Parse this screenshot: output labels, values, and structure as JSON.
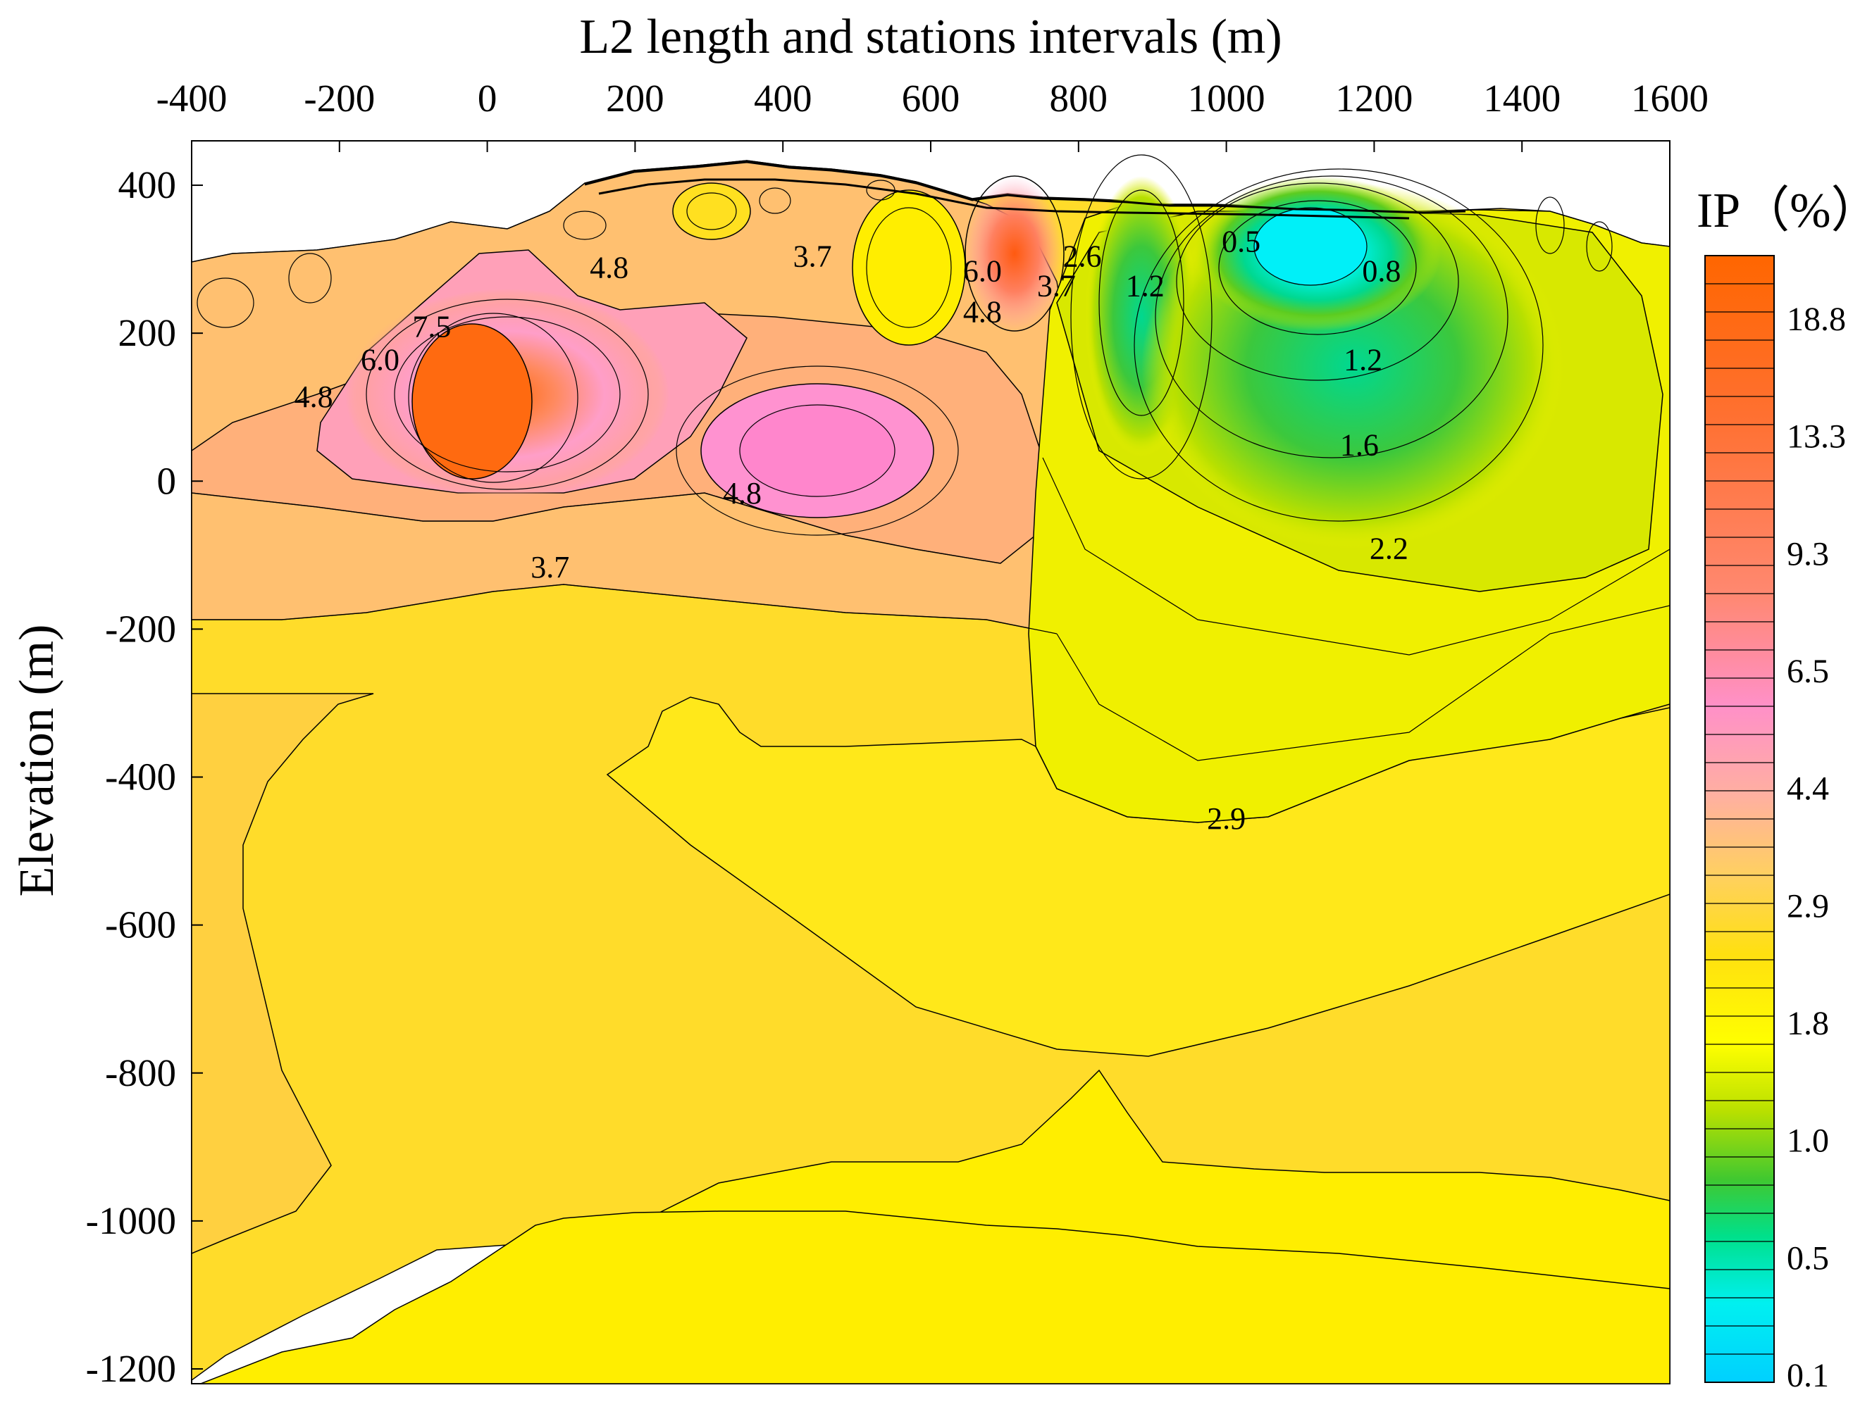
{
  "chart_data": {
    "type": "heatmap",
    "title": "L2 length and stations intervals (m)",
    "xlabel": "L2 length and stations intervals (m)",
    "ylabel": "Elevation (m)",
    "xlim": [
      -400,
      1600
    ],
    "ylim": [
      -1220,
      460
    ],
    "x_ticks": [
      "-400",
      "-200",
      "0",
      "200",
      "400",
      "600",
      "800",
      "1000",
      "1200",
      "1400",
      "1600"
    ],
    "y_ticks": [
      "400",
      "200",
      "0",
      "-200",
      "-400",
      "-600",
      "-800",
      "-1000",
      "-1200"
    ],
    "colorbar": {
      "title": "IP（%）",
      "tick_labels": [
        "18.8",
        "13.3",
        "9.3",
        "6.5",
        "4.4",
        "2.9",
        "1.8",
        "1.0",
        "0.5",
        "0.1"
      ],
      "colors": [
        "#ff6600",
        "#ff7a3a",
        "#ff8f6a",
        "#ff9ecc",
        "#ffc07a",
        "#ffdc2a",
        "#ffff00",
        "#c4e800",
        "#3ccc3c",
        "#00e6c0",
        "#00f0f0",
        "#00d8ff"
      ]
    },
    "contour_labels": [
      {
        "text": "4.8",
        "x": 165,
        "y": 275
      },
      {
        "text": "3.7",
        "x": 440,
        "y": 290
      },
      {
        "text": "7.5",
        "x": -75,
        "y": 195
      },
      {
        "text": "6.0",
        "x": -145,
        "y": 150
      },
      {
        "text": "4.8",
        "x": -235,
        "y": 100
      },
      {
        "text": "4.8",
        "x": 345,
        "y": -30
      },
      {
        "text": "3.7",
        "x": 85,
        "y": -130
      },
      {
        "text": "6.0",
        "x": 670,
        "y": 270
      },
      {
        "text": "4.8",
        "x": 670,
        "y": 215
      },
      {
        "text": "3.7",
        "x": 770,
        "y": 250
      },
      {
        "text": "2.6",
        "x": 805,
        "y": 290
      },
      {
        "text": "1.2",
        "x": 890,
        "y": 250
      },
      {
        "text": "0.5",
        "x": 1020,
        "y": 310
      },
      {
        "text": "0.8",
        "x": 1210,
        "y": 270
      },
      {
        "text": "1.2",
        "x": 1185,
        "y": 150
      },
      {
        "text": "1.6",
        "x": 1180,
        "y": 35
      },
      {
        "text": "2.2",
        "x": 1220,
        "y": -105
      },
      {
        "text": "2.9",
        "x": 1000,
        "y": -470
      }
    ]
  }
}
